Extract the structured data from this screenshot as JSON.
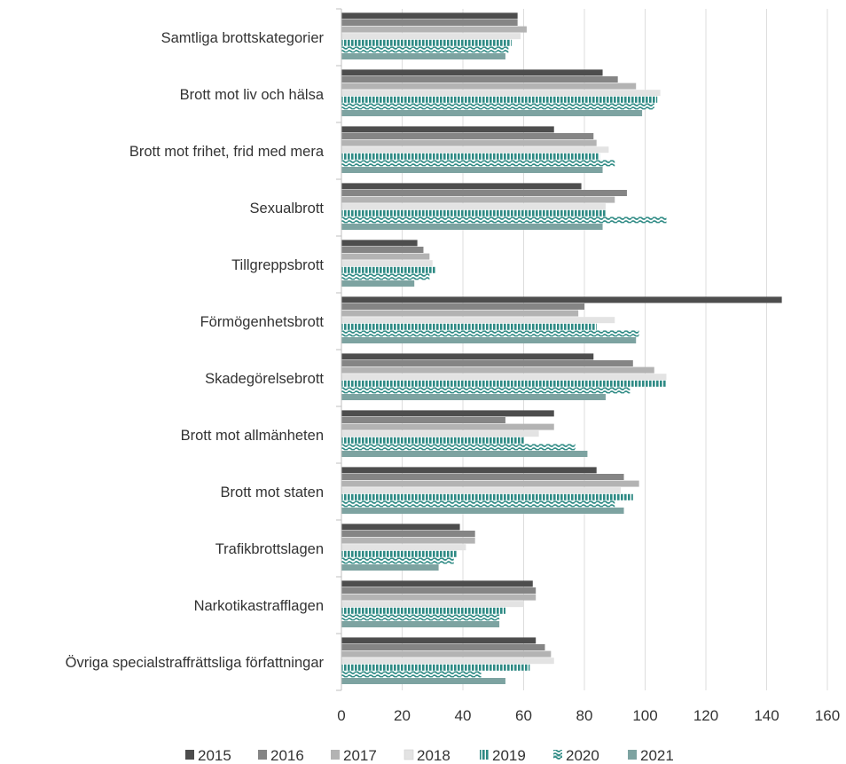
{
  "chart_data": {
    "type": "bar",
    "orientation": "horizontal",
    "categories": [
      "Samtliga brottskategorier",
      "Brott mot liv och hälsa",
      "Brott mot frihet, frid med mera",
      "Sexualbrott",
      "Tillgreppsbrott",
      "Förmögenhetsbrott",
      "Skadegörelsebrott",
      "Brott mot allmänheten",
      "Brott mot staten",
      "Trafikbrottslagen",
      "Narkotikastrafflagen",
      "Övriga specialstraffrättsliga författningar"
    ],
    "series": [
      {
        "name": "2015",
        "color": "#4d4d4d",
        "pattern": "solid",
        "values": [
          58,
          86,
          70,
          79,
          25,
          145,
          83,
          70,
          84,
          39,
          63,
          64
        ]
      },
      {
        "name": "2016",
        "color": "#858585",
        "pattern": "solid",
        "values": [
          58,
          91,
          83,
          94,
          27,
          80,
          96,
          54,
          93,
          44,
          64,
          67
        ]
      },
      {
        "name": "2017",
        "color": "#b3b3b3",
        "pattern": "solid",
        "values": [
          61,
          97,
          84,
          90,
          29,
          78,
          103,
          70,
          98,
          44,
          64,
          69
        ]
      },
      {
        "name": "2018",
        "color": "#e3e3e3",
        "pattern": "solid",
        "values": [
          59,
          105,
          88,
          87,
          30,
          90,
          107,
          65,
          92,
          41,
          60,
          70
        ]
      },
      {
        "name": "2019",
        "color": "#2e8a84",
        "pattern": "vertical-stripes",
        "values": [
          56,
          104,
          85,
          87,
          31,
          84,
          107,
          60,
          96,
          38,
          54,
          62
        ]
      },
      {
        "name": "2020",
        "color": "#2e8a84",
        "pattern": "wave",
        "values": [
          55,
          103,
          90,
          107,
          29,
          98,
          95,
          77,
          90,
          37,
          52,
          46
        ]
      },
      {
        "name": "2021",
        "color": "#7da3a1",
        "pattern": "solid",
        "values": [
          54,
          99,
          86,
          86,
          24,
          97,
          87,
          81,
          93,
          32,
          52,
          54
        ]
      }
    ],
    "xlim": [
      0,
      160
    ],
    "xticks": [
      0,
      20,
      40,
      60,
      80,
      100,
      120,
      140,
      160
    ],
    "grid": "vertical",
    "legend": "bottom"
  }
}
